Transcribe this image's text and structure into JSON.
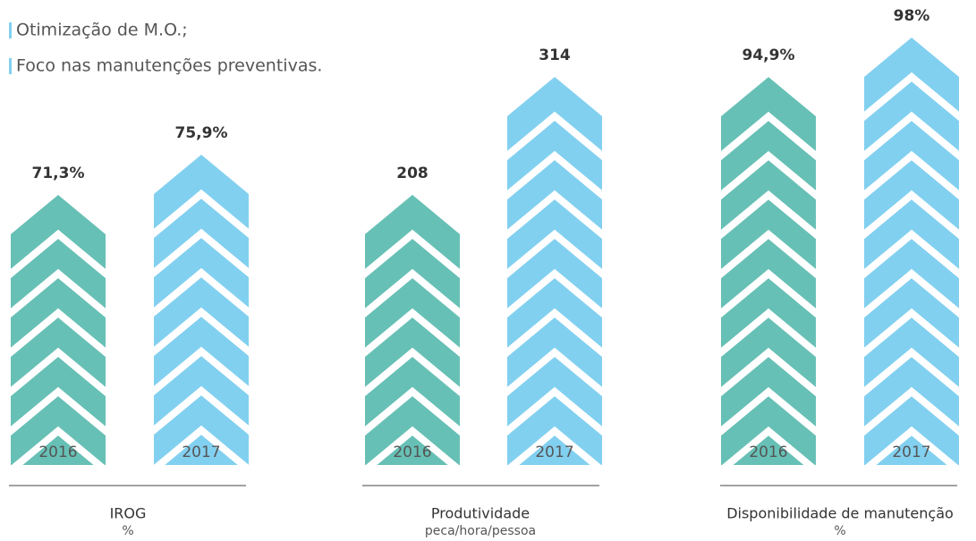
{
  "bullets": [
    "Otimização de M.O.;",
    "Foco nas manutenções preventivas."
  ],
  "chart_data": [
    {
      "type": "bar",
      "title": "IROG",
      "subtitle": "%",
      "categories": [
        "2016",
        "2017"
      ],
      "values": [
        71.3,
        75.9
      ],
      "value_labels": [
        "71,3%",
        "75,9%"
      ],
      "colors": [
        "#67c0b5",
        "#82d0f0"
      ],
      "ylim": [
        40.4,
        89.3
      ]
    },
    {
      "type": "bar",
      "title": "Produtividade",
      "subtitle": "peca/hora/pessoa",
      "categories": [
        "2016",
        "2017"
      ],
      "values": [
        208,
        314
      ],
      "colors": [
        "#67c0b5",
        "#82d0f0"
      ],
      "ylim": [
        -34.6,
        349.3
      ]
    },
    {
      "type": "bar",
      "title": "Disponibilidade de manutenção",
      "subtitle": "%",
      "categories": [
        "2016",
        "2017"
      ],
      "values": [
        94.9,
        98
      ],
      "value_labels": [
        "94,9%",
        "98%"
      ],
      "colors": [
        "#67c0b5",
        "#82d0f0"
      ],
      "ylim": [
        64.4,
        98
      ]
    }
  ]
}
